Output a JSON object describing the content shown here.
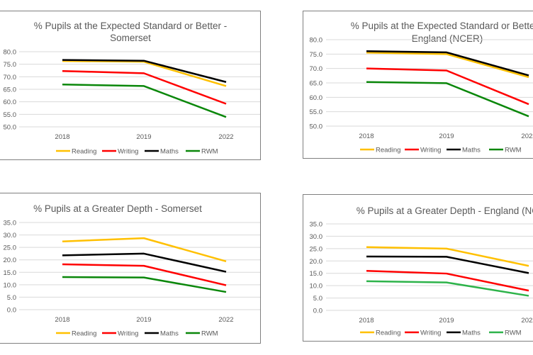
{
  "chart_data": [
    {
      "type": "line",
      "title": [
        "% Pupils at the Expected Standard or Better -",
        "Somerset"
      ],
      "categories": [
        "2018",
        "2019",
        "2022"
      ],
      "ylim": [
        50,
        80
      ],
      "yticks": [
        "80.0",
        "75.0",
        "70.0",
        "65.0",
        "60.0",
        "55.0",
        "50.0"
      ],
      "grid": true,
      "legend": "bottom",
      "series": [
        {
          "name": "Reading",
          "color": "#ffc000",
          "values": [
            76.3,
            76.0,
            66.3
          ]
        },
        {
          "name": "Writing",
          "color": "#ff0000",
          "values": [
            72.3,
            71.4,
            59.2
          ]
        },
        {
          "name": "Maths",
          "color": "#000000",
          "values": [
            76.7,
            76.4,
            67.9
          ]
        },
        {
          "name": "RWM",
          "color": "#0a870a",
          "values": [
            66.9,
            66.3,
            53.9
          ]
        }
      ]
    },
    {
      "type": "line",
      "title": [
        "% Pupils at the Expected Standard or Better -",
        "England (NCER)"
      ],
      "categories": [
        "2018",
        "2019",
        "2022"
      ],
      "ylim": [
        50,
        80
      ],
      "yticks": [
        "80.0",
        "75.0",
        "70.0",
        "65.0",
        "60.0",
        "55.0",
        "50.0"
      ],
      "grid": true,
      "legend": "bottom",
      "series": [
        {
          "name": "Reading",
          "color": "#ffc000",
          "values": [
            75.5,
            75.0,
            67.0
          ]
        },
        {
          "name": "Writing",
          "color": "#ff0000",
          "values": [
            70.0,
            69.3,
            57.6
          ]
        },
        {
          "name": "Maths",
          "color": "#000000",
          "values": [
            76.0,
            75.6,
            67.6
          ]
        },
        {
          "name": "RWM",
          "color": "#0a870a",
          "values": [
            65.3,
            64.9,
            53.4
          ]
        }
      ]
    },
    {
      "type": "line",
      "title": [
        "% Pupils at a Greater Depth - Somerset"
      ],
      "categories": [
        "2018",
        "2019",
        "2022"
      ],
      "ylim": [
        0,
        35
      ],
      "yticks": [
        "35.0",
        "30.0",
        "25.0",
        "20.0",
        "15.0",
        "10.0",
        "5.0",
        "0.0"
      ],
      "grid": true,
      "legend": "bottom",
      "series": [
        {
          "name": "Reading",
          "color": "#ffc000",
          "values": [
            27.4,
            28.7,
            19.4
          ]
        },
        {
          "name": "Writing",
          "color": "#ff0000",
          "values": [
            18.2,
            17.6,
            9.8
          ]
        },
        {
          "name": "Maths",
          "color": "#000000",
          "values": [
            21.8,
            22.5,
            15.2
          ]
        },
        {
          "name": "RWM",
          "color": "#0a870a",
          "values": [
            13.1,
            12.9,
            7.1
          ]
        }
      ]
    },
    {
      "type": "line",
      "title": [
        "% Pupils at a Greater Depth - England (NCER)"
      ],
      "categories": [
        "2018",
        "2019",
        "2022"
      ],
      "ylim": [
        0,
        35
      ],
      "yticks": [
        "35.0",
        "30.0",
        "25.0",
        "20.0",
        "15.0",
        "10.0",
        "5.0",
        "0.0"
      ],
      "grid": true,
      "legend": "bottom",
      "series": [
        {
          "name": "Reading",
          "color": "#ffc000",
          "values": [
            25.6,
            25.0,
            18.0
          ]
        },
        {
          "name": "Writing",
          "color": "#ff0000",
          "values": [
            16.0,
            14.9,
            8.0
          ]
        },
        {
          "name": "Maths",
          "color": "#000000",
          "values": [
            21.8,
            21.7,
            15.1
          ]
        },
        {
          "name": "RWM",
          "color": "#2db34a",
          "values": [
            11.8,
            11.3,
            5.9
          ]
        }
      ]
    }
  ]
}
